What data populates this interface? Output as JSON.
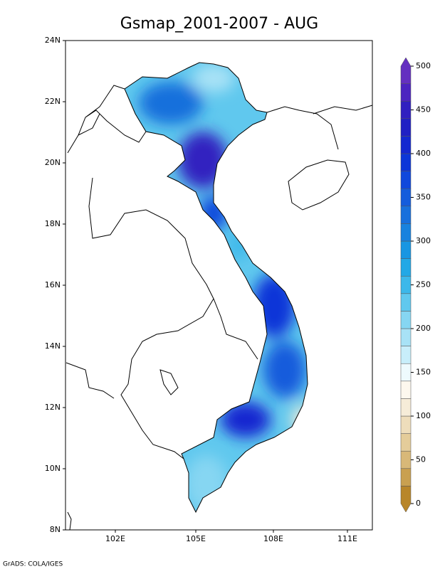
{
  "title": "Gsmap_2001-2007 - AUG",
  "lat_labels": [
    "24N",
    "22N",
    "20N",
    "18N",
    "16N",
    "14N",
    "12N",
    "10N",
    "8N"
  ],
  "lon_labels": [
    "102E",
    "105E",
    "108E",
    "111E"
  ],
  "colorbar": {
    "ticks": [
      0,
      50,
      100,
      150,
      200,
      250,
      300,
      350,
      400,
      450,
      500
    ],
    "levels": [
      0,
      20,
      40,
      60,
      80,
      100,
      120,
      140,
      160,
      180,
      200,
      220,
      240,
      260,
      280,
      300,
      320,
      340,
      360,
      380,
      400,
      420,
      440,
      460,
      480,
      500
    ],
    "colors": [
      "#b8862a",
      "#c9a050",
      "#d8b878",
      "#e4cc9a",
      "#eeddbb",
      "#f6ecd8",
      "#fdf8ee",
      "#eefafd",
      "#c8eefa",
      "#a8e2f6",
      "#86d6f2",
      "#60c8ee",
      "#3cb8ea",
      "#22a8e6",
      "#1896e2",
      "#1882de",
      "#1870dc",
      "#145cdc",
      "#1048dc",
      "#0c36d8",
      "#1428d0",
      "#2020c4",
      "#3020c0",
      "#4c24c0",
      "#6430c0"
    ]
  },
  "footer": "GrADS: COLA/IGES"
}
